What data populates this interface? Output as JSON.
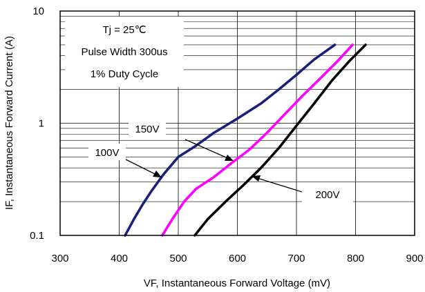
{
  "chart_data": {
    "type": "line",
    "title": "",
    "xlabel": "VF, Instantaneous Forward  Voltage (mV)",
    "ylabel": "IF, Instantaneous Forward Current (A)",
    "xlim": [
      300,
      900
    ],
    "ylim": [
      0.1,
      10
    ],
    "y_scale": "log",
    "grid": true,
    "x_ticks": [
      300,
      400,
      500,
      600,
      700,
      800,
      900
    ],
    "y_ticks": [
      {
        "value": 0.1,
        "label": "0.1"
      },
      {
        "value": 1,
        "label": "1"
      },
      {
        "value": 10,
        "label": "10"
      }
    ],
    "annotations": [
      "Tj = 25℃",
      "Pulse Width 300us",
      "1% Duty Cycle"
    ],
    "series": [
      {
        "name": "100V",
        "color": "#1a1f7a",
        "x": [
          410,
          425,
          440,
          455,
          475,
          500,
          530,
          560,
          600,
          640,
          670,
          700,
          730,
          765
        ],
        "y": [
          0.1,
          0.14,
          0.19,
          0.25,
          0.35,
          0.5,
          0.63,
          0.82,
          1.1,
          1.5,
          2.0,
          2.7,
          3.7,
          5.0
        ]
      },
      {
        "name": "150V",
        "color": "#ff00ff",
        "x": [
          473,
          490,
          510,
          530,
          560,
          590,
          620,
          650,
          680,
          710,
          740,
          770,
          795
        ],
        "y": [
          0.1,
          0.14,
          0.2,
          0.26,
          0.33,
          0.44,
          0.58,
          0.82,
          1.2,
          1.75,
          2.5,
          3.6,
          5.0
        ]
      },
      {
        "name": "200V",
        "color": "#000000",
        "x": [
          528,
          550,
          580,
          610,
          640,
          670,
          700,
          730,
          760,
          790,
          817
        ],
        "y": [
          0.1,
          0.14,
          0.2,
          0.28,
          0.4,
          0.6,
          0.95,
          1.5,
          2.4,
          3.6,
          5.0
        ]
      }
    ]
  }
}
